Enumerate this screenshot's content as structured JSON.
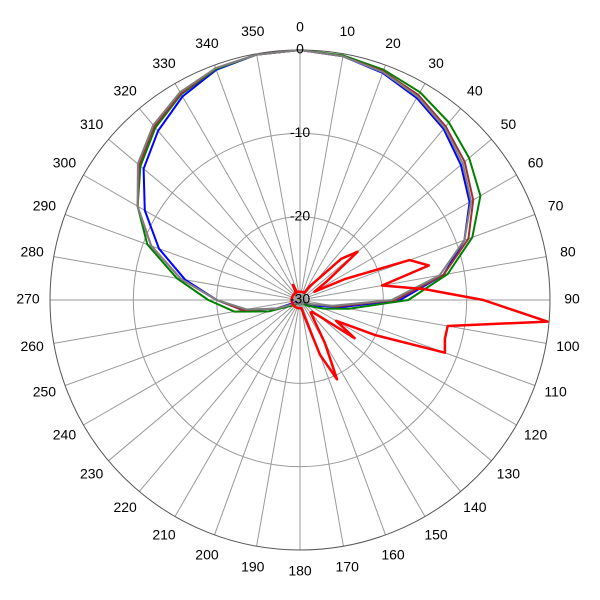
{
  "chart_data": {
    "type": "polar",
    "rlim": [
      -30,
      0
    ],
    "rticks": [
      -30,
      -20,
      -10,
      0
    ],
    "angle_ticks": [
      0,
      10,
      20,
      30,
      40,
      50,
      60,
      70,
      80,
      90,
      100,
      110,
      120,
      130,
      140,
      150,
      160,
      170,
      180,
      190,
      200,
      210,
      220,
      230,
      240,
      250,
      260,
      270,
      280,
      290,
      300,
      310,
      320,
      330,
      340,
      350
    ],
    "direction": "clockwise",
    "zero_location": "top",
    "grid": true,
    "series": [
      {
        "color": "#0000ff",
        "theta": [
          0,
          10,
          20,
          30,
          40,
          50,
          60,
          70,
          80,
          90,
          100,
          110,
          120,
          130,
          140,
          150,
          160,
          170,
          180,
          190,
          200,
          210,
          220,
          230,
          240,
          250,
          260,
          270,
          280,
          290,
          300,
          310,
          320,
          330,
          340,
          350
        ],
        "values": [
          0,
          -0.3,
          -1,
          -2,
          -3.2,
          -4.8,
          -6.5,
          -9,
          -12.5,
          -18,
          -25,
          -28,
          -29,
          -29.5,
          -29.5,
          -29.5,
          -29.5,
          -29.5,
          -29.5,
          -29.5,
          -29.5,
          -29.5,
          -29.5,
          -29.5,
          -29.5,
          -27,
          -23,
          -20,
          -16,
          -12,
          -8.5,
          -5.5,
          -3.5,
          -1.8,
          -0.6,
          -0.1
        ]
      },
      {
        "color": "#008000",
        "theta": [
          0,
          10,
          20,
          30,
          40,
          50,
          60,
          70,
          80,
          90,
          100,
          110,
          120,
          130,
          140,
          150,
          160,
          170,
          180,
          190,
          200,
          210,
          220,
          230,
          240,
          250,
          260,
          270,
          280,
          290,
          300,
          310,
          320,
          330,
          340,
          350
        ],
        "values": [
          0,
          -0.2,
          -0.6,
          -1.2,
          -2.2,
          -3.5,
          -5,
          -8,
          -12,
          -17,
          -24,
          -27,
          -28.5,
          -29,
          -29.5,
          -29.5,
          -29.5,
          -29.5,
          -29.5,
          -29.5,
          -29.5,
          -29.5,
          -29.5,
          -29,
          -28.5,
          -26,
          -22,
          -19,
          -15,
          -10.5,
          -7.5,
          -5,
          -3,
          -1.5,
          -0.5,
          -0.1
        ]
      },
      {
        "color": "#993333",
        "theta": [
          0,
          10,
          20,
          30,
          40,
          50,
          60,
          70,
          80,
          90,
          100,
          110,
          120,
          130,
          140,
          150,
          160,
          170,
          180,
          190,
          200,
          210,
          220,
          230,
          240,
          250,
          260,
          270,
          280,
          290,
          300,
          310,
          320,
          330,
          340,
          350
        ],
        "values": [
          0,
          -0.3,
          -0.8,
          -1.6,
          -2.8,
          -4.2,
          -6,
          -8.5,
          -12.5,
          -18.5,
          -25.5,
          -28.5,
          -29.5,
          -29.5,
          -29.5,
          -29.5,
          -29.5,
          -29.5,
          -29.5,
          -29.5,
          -29.5,
          -29.5,
          -29.5,
          -29.5,
          -29,
          -27,
          -23,
          -20,
          -15.5,
          -11,
          -7.5,
          -4.8,
          -2.8,
          -1.4,
          -0.4,
          -0.1
        ]
      },
      {
        "color": "#808080",
        "theta": [
          0,
          10,
          20,
          30,
          40,
          50,
          60,
          70,
          80,
          90,
          100,
          110,
          120,
          130,
          140,
          150,
          160,
          170,
          180,
          190,
          200,
          210,
          220,
          230,
          240,
          250,
          260,
          270,
          280,
          290,
          300,
          310,
          320,
          330,
          340,
          350
        ],
        "values": [
          0,
          -0.3,
          -0.9,
          -1.8,
          -3,
          -4.5,
          -6.3,
          -9,
          -13,
          -19,
          -26,
          -28.5,
          -29.5,
          -29.5,
          -29.5,
          -29.5,
          -29.5,
          -29.5,
          -29.5,
          -29.5,
          -29.5,
          -29.5,
          -29.5,
          -29.5,
          -29,
          -27,
          -23.5,
          -20,
          -15.5,
          -11,
          -7.5,
          -4.6,
          -2.6,
          -1.2,
          -0.4,
          -0.1
        ]
      },
      {
        "color": "#ff0000",
        "theta": [
          0,
          5,
          10,
          15,
          20,
          25,
          30,
          35,
          40,
          45,
          50,
          55,
          60,
          65,
          70,
          75,
          80,
          85,
          90,
          95,
          100,
          105,
          110,
          115,
          120,
          125,
          130,
          135,
          140,
          145,
          150,
          155,
          160,
          165,
          170,
          175,
          180,
          185,
          190,
          195,
          200,
          205,
          210,
          215,
          220,
          225,
          230,
          235,
          240,
          245,
          250,
          255,
          260,
          265,
          270,
          275,
          280,
          285,
          290,
          295,
          300,
          305,
          310,
          315,
          320,
          325,
          330,
          335,
          340,
          345,
          350,
          355
        ],
        "values": [
          -29,
          -29,
          -29,
          -29,
          -29,
          -29,
          -29,
          -28,
          -27,
          -23,
          -21,
          -26,
          -28,
          -24,
          -16,
          -14,
          -20,
          -15,
          -8,
          -0.2,
          -12,
          -12,
          -11.5,
          -20,
          -25,
          -22,
          -27,
          -28,
          -28,
          -27,
          -24,
          -19.5,
          -23,
          -28,
          -29,
          -29,
          -29,
          -29,
          -29,
          -29,
          -29,
          -29,
          -29,
          -29,
          -29,
          -29,
          -29,
          -29,
          -29,
          -29,
          -29,
          -29,
          -29,
          -29,
          -29,
          -29,
          -29,
          -29,
          -29,
          -29,
          -29,
          -29,
          -29,
          -29,
          -29,
          -29,
          -29,
          -28,
          -29,
          -29,
          -29,
          -29
        ]
      }
    ]
  }
}
